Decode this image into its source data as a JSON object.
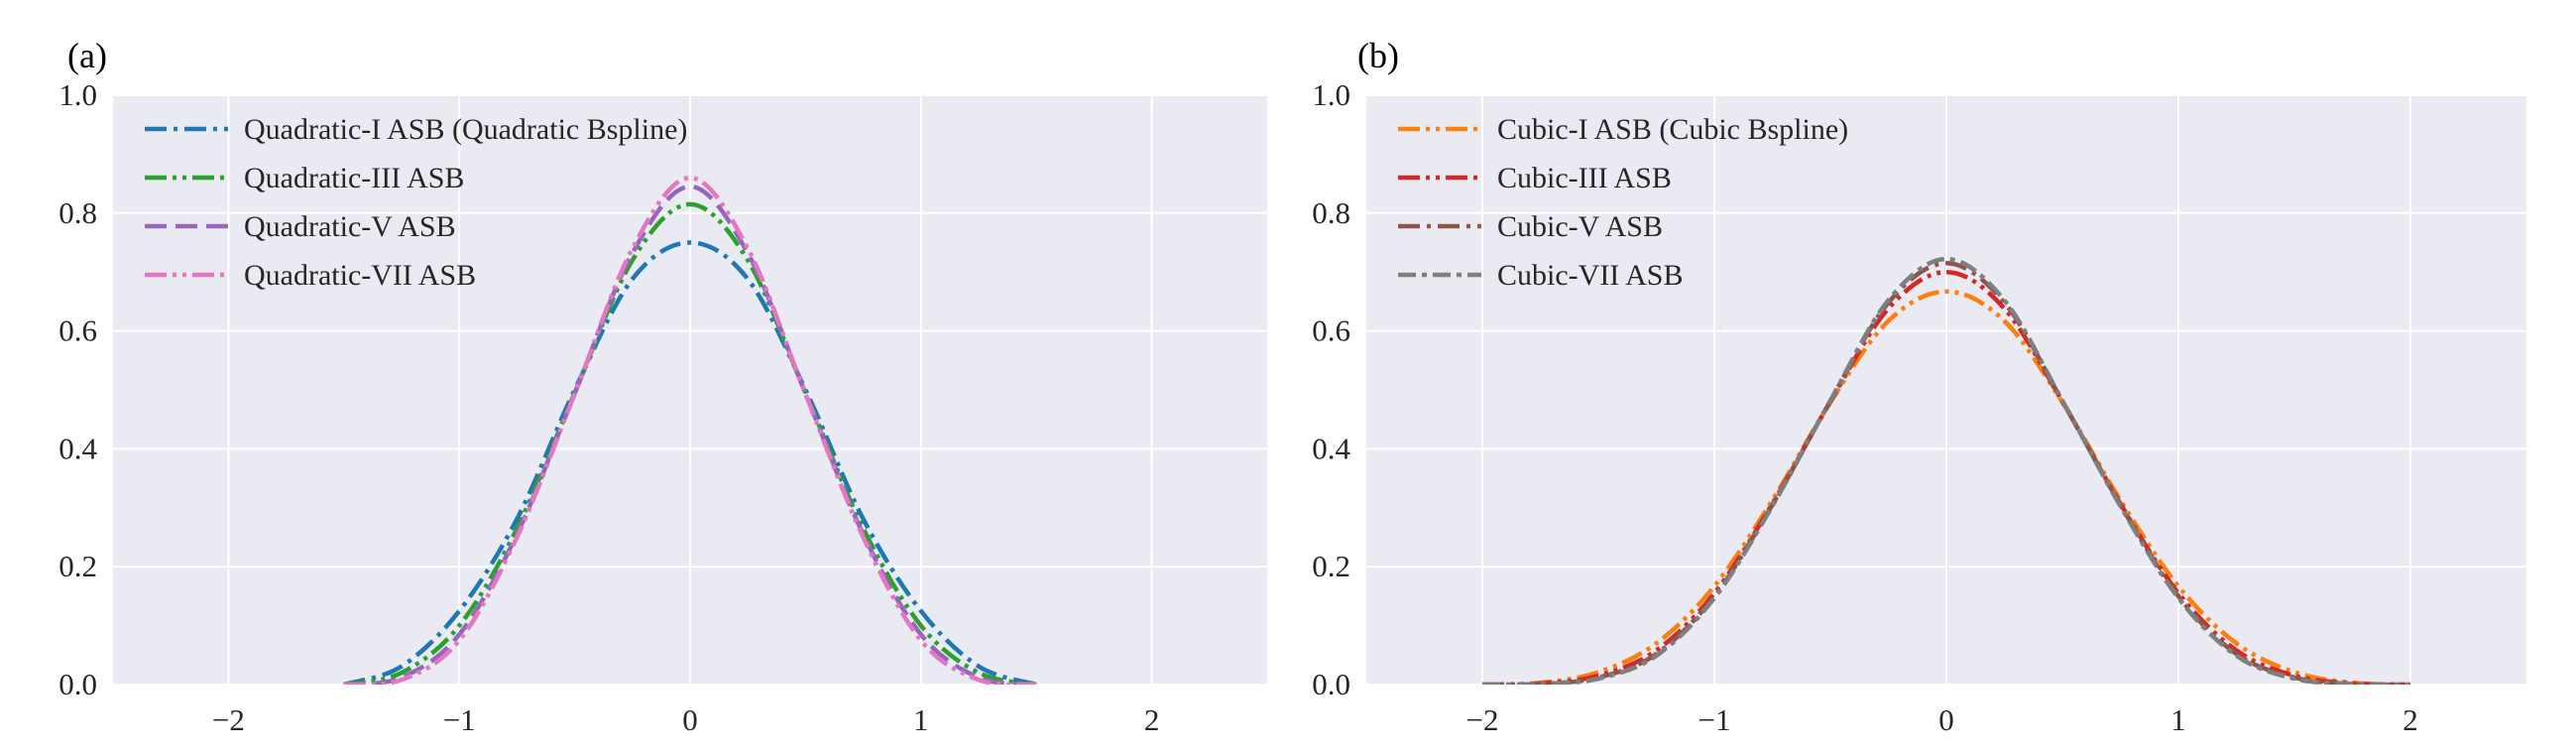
{
  "chart_data": [
    {
      "panel_label": "(a)",
      "type": "line",
      "background_color": "#EAEAF2",
      "grid": true,
      "xlim": [
        -2.5,
        2.5
      ],
      "ylim": [
        0,
        1.0
      ],
      "xticks": [
        -2,
        -1,
        0,
        1,
        2
      ],
      "xtick_labels": [
        "−2",
        "−1",
        "0",
        "1",
        "2"
      ],
      "yticks": [
        0.0,
        0.2,
        0.4,
        0.6,
        0.8,
        1.0
      ],
      "ytick_labels": [
        "0.0",
        "0.2",
        "0.4",
        "0.6",
        "0.8",
        "1.0"
      ],
      "xlabel": "",
      "ylabel": "",
      "legend_position": "top-left",
      "series": [
        {
          "name": "Quadratic-I ASB  (Quadratic Bspline)",
          "color": "#1f77b4",
          "dash": "dashdot",
          "x": [
            -1.5,
            -1.25,
            -1.0,
            -0.75,
            -0.5,
            -0.25,
            0.0,
            0.25,
            0.5,
            0.75,
            1.0,
            1.25,
            1.5
          ],
          "y": [
            0.0,
            0.031,
            0.125,
            0.281,
            0.5,
            0.688,
            0.75,
            0.688,
            0.5,
            0.281,
            0.125,
            0.031,
            0.0
          ]
        },
        {
          "name": "Quadratic-III ASB",
          "color": "#2ca02c",
          "dash": "dashdotdot",
          "x": [
            -1.5,
            -1.25,
            -1.0,
            -0.75,
            -0.5,
            -0.25,
            0.0,
            0.25,
            0.5,
            0.75,
            1.0,
            1.25,
            1.5
          ],
          "y": [
            0.0,
            0.02,
            0.1,
            0.265,
            0.495,
            0.72,
            0.815,
            0.72,
            0.495,
            0.265,
            0.1,
            0.02,
            0.0
          ]
        },
        {
          "name": "Quadratic-V ASB",
          "color": "#9467bd",
          "dash": "dashed",
          "x": [
            -1.5,
            -1.25,
            -1.0,
            -0.75,
            -0.5,
            -0.25,
            0.0,
            0.25,
            0.5,
            0.75,
            1.0,
            1.25,
            1.5
          ],
          "y": [
            0.0,
            0.012,
            0.085,
            0.255,
            0.494,
            0.732,
            0.845,
            0.732,
            0.494,
            0.255,
            0.085,
            0.012,
            0.0
          ]
        },
        {
          "name": "Quadratic-VII ASB",
          "color": "#e377c2",
          "dash": "dashdotdot",
          "x": [
            -1.5,
            -1.25,
            -1.0,
            -0.75,
            -0.5,
            -0.25,
            0.0,
            0.25,
            0.5,
            0.75,
            1.0,
            1.25,
            1.5
          ],
          "y": [
            0.0,
            0.008,
            0.075,
            0.25,
            0.493,
            0.74,
            0.86,
            0.74,
            0.493,
            0.25,
            0.075,
            0.008,
            0.0
          ]
        }
      ]
    },
    {
      "panel_label": "(b)",
      "type": "line",
      "background_color": "#EAEAF2",
      "grid": true,
      "xlim": [
        -2.5,
        2.5
      ],
      "ylim": [
        0,
        1.0
      ],
      "xticks": [
        -2,
        -1,
        0,
        1,
        2
      ],
      "xtick_labels": [
        "−2",
        "−1",
        "0",
        "1",
        "2"
      ],
      "yticks": [
        0.0,
        0.2,
        0.4,
        0.6,
        0.8,
        1.0
      ],
      "ytick_labels": [
        "0.0",
        "0.2",
        "0.4",
        "0.6",
        "0.8",
        "1.0"
      ],
      "xlabel": "",
      "ylabel": "",
      "legend_position": "top-left",
      "series": [
        {
          "name": "Cubic-I ASB  (Cubic Bspline)",
          "color": "#ff7f0e",
          "dash": "dashdotdot",
          "x": [
            -2.0,
            -1.75,
            -1.5,
            -1.25,
            -1.0,
            -0.75,
            -0.5,
            -0.25,
            0.0,
            0.25,
            0.5,
            0.75,
            1.0,
            1.25,
            1.5,
            1.75,
            2.0
          ],
          "y": [
            0.0,
            0.003,
            0.021,
            0.07,
            0.167,
            0.313,
            0.479,
            0.617,
            0.667,
            0.617,
            0.479,
            0.313,
            0.167,
            0.07,
            0.021,
            0.003,
            0.0
          ]
        },
        {
          "name": "Cubic-III ASB",
          "color": "#d62728",
          "dash": "dashdotdot",
          "x": [
            -2.0,
            -1.75,
            -1.5,
            -1.25,
            -1.0,
            -0.75,
            -0.5,
            -0.25,
            0.0,
            0.25,
            0.5,
            0.75,
            1.0,
            1.25,
            1.5,
            1.75,
            2.0
          ],
          "y": [
            0.0,
            0.002,
            0.015,
            0.058,
            0.155,
            0.307,
            0.48,
            0.638,
            0.7,
            0.638,
            0.48,
            0.307,
            0.155,
            0.058,
            0.015,
            0.002,
            0.0
          ]
        },
        {
          "name": "Cubic-V ASB",
          "color": "#8c564b",
          "dash": "dashdot",
          "x": [
            -2.0,
            -1.75,
            -1.5,
            -1.25,
            -1.0,
            -0.75,
            -0.5,
            -0.25,
            0.0,
            0.25,
            0.5,
            0.75,
            1.0,
            1.25,
            1.5,
            1.75,
            2.0
          ],
          "y": [
            0.0,
            0.001,
            0.012,
            0.052,
            0.15,
            0.305,
            0.481,
            0.648,
            0.715,
            0.648,
            0.481,
            0.305,
            0.15,
            0.052,
            0.012,
            0.001,
            0.0
          ]
        },
        {
          "name": "Cubic-VII ASB",
          "color": "#7f7f7f",
          "dash": "longdotted",
          "x": [
            -2.0,
            -1.75,
            -1.5,
            -1.25,
            -1.0,
            -0.75,
            -0.5,
            -0.25,
            0.0,
            0.25,
            0.5,
            0.75,
            1.0,
            1.25,
            1.5,
            1.75,
            2.0
          ],
          "y": [
            0.0,
            0.001,
            0.01,
            0.049,
            0.147,
            0.303,
            0.482,
            0.652,
            0.722,
            0.652,
            0.482,
            0.303,
            0.147,
            0.049,
            0.01,
            0.001,
            0.0
          ]
        }
      ]
    }
  ]
}
